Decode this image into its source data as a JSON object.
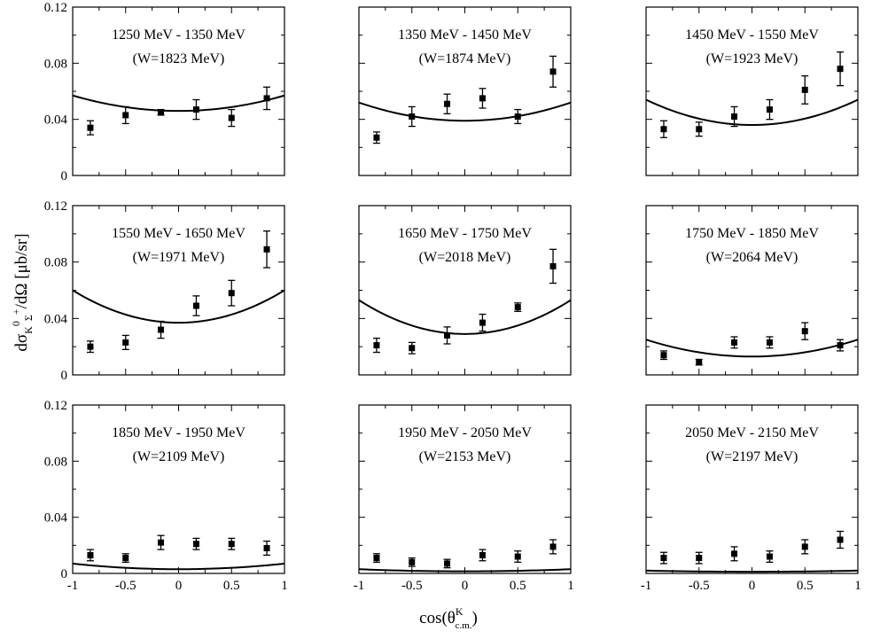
{
  "figure": {
    "ylabel_main": "dσ",
    "ylabel_sub": "K",
    "ylabel_sub2": "Σ",
    "ylabel_sup": "0",
    "ylabel_sup2": "+",
    "ylabel_tail": "/dΩ [μb/sr]",
    "xlabel_main": "cos(θ",
    "xlabel_sup": "K",
    "xlabel_sub": "c.m.",
    "xlabel_tail": ")"
  },
  "chart_data": [
    {
      "type": "scatter",
      "title": "1250 MeV - 1350 MeV",
      "subtitle": "(W=1823 MeV)",
      "xlim": [
        -1,
        1
      ],
      "ylim": [
        0,
        0.12
      ],
      "xticks": [
        "-1",
        "-0.5",
        "0",
        "0.5",
        "1"
      ],
      "yticks": [
        "0",
        "0.04",
        "0.08",
        "0.12"
      ],
      "points": [
        {
          "x": -0.833,
          "y": 0.034,
          "err": 0.005
        },
        {
          "x": -0.5,
          "y": 0.043,
          "err": 0.006
        },
        {
          "x": -0.167,
          "y": 0.045,
          "err": 0.002
        },
        {
          "x": 0.167,
          "y": 0.047,
          "err": 0.007
        },
        {
          "x": 0.5,
          "y": 0.041,
          "err": 0.006
        },
        {
          "x": 0.833,
          "y": 0.055,
          "err": 0.008
        }
      ],
      "curve": {
        "min": 0.046,
        "edge": 0.057
      }
    },
    {
      "type": "scatter",
      "title": "1350 MeV - 1450 MeV",
      "subtitle": "(W=1874 MeV)",
      "xlim": [
        -1,
        1
      ],
      "ylim": [
        0,
        0.12
      ],
      "xticks": [
        "-1",
        "-0.5",
        "0",
        "0.5",
        "1"
      ],
      "yticks": [
        "0",
        "0.04",
        "0.08",
        "0.12"
      ],
      "points": [
        {
          "x": -0.833,
          "y": 0.027,
          "err": 0.004
        },
        {
          "x": -0.5,
          "y": 0.042,
          "err": 0.007
        },
        {
          "x": -0.167,
          "y": 0.051,
          "err": 0.007
        },
        {
          "x": 0.167,
          "y": 0.055,
          "err": 0.007
        },
        {
          "x": 0.5,
          "y": 0.042,
          "err": 0.005
        },
        {
          "x": 0.833,
          "y": 0.074,
          "err": 0.011
        }
      ],
      "curve": {
        "min": 0.039,
        "edge": 0.052
      }
    },
    {
      "type": "scatter",
      "title": "1450 MeV - 1550 MeV",
      "subtitle": "(W=1923 MeV)",
      "xlim": [
        -1,
        1
      ],
      "ylim": [
        0,
        0.12
      ],
      "xticks": [
        "-1",
        "-0.5",
        "0",
        "0.5",
        "1"
      ],
      "yticks": [
        "0",
        "0.04",
        "0.08",
        "0.12"
      ],
      "points": [
        {
          "x": -0.833,
          "y": 0.033,
          "err": 0.006
        },
        {
          "x": -0.5,
          "y": 0.033,
          "err": 0.005
        },
        {
          "x": -0.167,
          "y": 0.042,
          "err": 0.007
        },
        {
          "x": 0.167,
          "y": 0.047,
          "err": 0.007
        },
        {
          "x": 0.5,
          "y": 0.061,
          "err": 0.01
        },
        {
          "x": 0.833,
          "y": 0.076,
          "err": 0.012
        }
      ],
      "curve": {
        "min": 0.036,
        "edge": 0.054
      }
    },
    {
      "type": "scatter",
      "title": "1550 MeV - 1650 MeV",
      "subtitle": "(W=1971 MeV)",
      "xlim": [
        -1,
        1
      ],
      "ylim": [
        0,
        0.12
      ],
      "xticks": [
        "-1",
        "-0.5",
        "0",
        "0.5",
        "1"
      ],
      "yticks": [
        "0",
        "0.04",
        "0.08",
        "0.12"
      ],
      "points": [
        {
          "x": -0.833,
          "y": 0.02,
          "err": 0.004
        },
        {
          "x": -0.5,
          "y": 0.023,
          "err": 0.005
        },
        {
          "x": -0.167,
          "y": 0.032,
          "err": 0.006
        },
        {
          "x": 0.167,
          "y": 0.049,
          "err": 0.007
        },
        {
          "x": 0.5,
          "y": 0.058,
          "err": 0.009
        },
        {
          "x": 0.833,
          "y": 0.089,
          "err": 0.013
        }
      ],
      "curve": {
        "min": 0.037,
        "edge": 0.06
      }
    },
    {
      "type": "scatter",
      "title": "1650 MeV - 1750 MeV",
      "subtitle": "(W=2018 MeV)",
      "xlim": [
        -1,
        1
      ],
      "ylim": [
        0,
        0.12
      ],
      "xticks": [
        "-1",
        "-0.5",
        "0",
        "0.5",
        "1"
      ],
      "yticks": [
        "0",
        "0.04",
        "0.08",
        "0.12"
      ],
      "points": [
        {
          "x": -0.833,
          "y": 0.021,
          "err": 0.005
        },
        {
          "x": -0.5,
          "y": 0.019,
          "err": 0.004
        },
        {
          "x": -0.167,
          "y": 0.028,
          "err": 0.006
        },
        {
          "x": 0.167,
          "y": 0.037,
          "err": 0.006
        },
        {
          "x": 0.5,
          "y": 0.048,
          "err": 0.003
        },
        {
          "x": 0.833,
          "y": 0.077,
          "err": 0.012
        }
      ],
      "curve": {
        "min": 0.029,
        "edge": 0.053
      }
    },
    {
      "type": "scatter",
      "title": "1750 MeV - 1850 MeV",
      "subtitle": "(W=2064 MeV)",
      "xlim": [
        -1,
        1
      ],
      "ylim": [
        0,
        0.12
      ],
      "xticks": [
        "-1",
        "-0.5",
        "0",
        "0.5",
        "1"
      ],
      "yticks": [
        "0",
        "0.04",
        "0.08",
        "0.12"
      ],
      "points": [
        {
          "x": -0.833,
          "y": 0.014,
          "err": 0.003
        },
        {
          "x": -0.5,
          "y": 0.009,
          "err": 0.002
        },
        {
          "x": -0.167,
          "y": 0.023,
          "err": 0.004
        },
        {
          "x": 0.167,
          "y": 0.023,
          "err": 0.004
        },
        {
          "x": 0.5,
          "y": 0.031,
          "err": 0.006
        },
        {
          "x": 0.833,
          "y": 0.021,
          "err": 0.004
        }
      ],
      "curve": {
        "min": 0.013,
        "edge": 0.025
      }
    },
    {
      "type": "scatter",
      "title": "1850 MeV - 1950 MeV",
      "subtitle": "(W=2109 MeV)",
      "xlim": [
        -1,
        1
      ],
      "ylim": [
        0,
        0.12
      ],
      "xticks": [
        "-1",
        "-0.5",
        "0",
        "0.5",
        "1"
      ],
      "yticks": [
        "0",
        "0.04",
        "0.08",
        "0.12"
      ],
      "points": [
        {
          "x": -0.833,
          "y": 0.013,
          "err": 0.004
        },
        {
          "x": -0.5,
          "y": 0.011,
          "err": 0.003
        },
        {
          "x": -0.167,
          "y": 0.022,
          "err": 0.005
        },
        {
          "x": 0.167,
          "y": 0.021,
          "err": 0.004
        },
        {
          "x": 0.5,
          "y": 0.021,
          "err": 0.004
        },
        {
          "x": 0.833,
          "y": 0.018,
          "err": 0.005
        }
      ],
      "curve": {
        "min": 0.003,
        "edge": 0.007
      }
    },
    {
      "type": "scatter",
      "title": "1950 MeV - 2050 MeV",
      "subtitle": "(W=2153 MeV)",
      "xlim": [
        -1,
        1
      ],
      "ylim": [
        0,
        0.12
      ],
      "xticks": [
        "-1",
        "-0.5",
        "0",
        "0.5",
        "1"
      ],
      "yticks": [
        "0",
        "0.04",
        "0.08",
        "0.12"
      ],
      "points": [
        {
          "x": -0.833,
          "y": 0.011,
          "err": 0.003
        },
        {
          "x": -0.5,
          "y": 0.008,
          "err": 0.003
        },
        {
          "x": -0.167,
          "y": 0.007,
          "err": 0.003
        },
        {
          "x": 0.167,
          "y": 0.013,
          "err": 0.004
        },
        {
          "x": 0.5,
          "y": 0.012,
          "err": 0.004
        },
        {
          "x": 0.833,
          "y": 0.019,
          "err": 0.005
        }
      ],
      "curve": {
        "min": 0.0015,
        "edge": 0.003
      }
    },
    {
      "type": "scatter",
      "title": "2050 MeV - 2150 MeV",
      "subtitle": "(W=2197 MeV)",
      "xlim": [
        -1,
        1
      ],
      "ylim": [
        0,
        0.12
      ],
      "xticks": [
        "-1",
        "-0.5",
        "0",
        "0.5",
        "1"
      ],
      "yticks": [
        "0",
        "0.04",
        "0.08",
        "0.12"
      ],
      "points": [
        {
          "x": -0.833,
          "y": 0.011,
          "err": 0.004
        },
        {
          "x": -0.5,
          "y": 0.011,
          "err": 0.004
        },
        {
          "x": -0.167,
          "y": 0.014,
          "err": 0.005
        },
        {
          "x": 0.167,
          "y": 0.012,
          "err": 0.004
        },
        {
          "x": 0.5,
          "y": 0.019,
          "err": 0.005
        },
        {
          "x": 0.833,
          "y": 0.024,
          "err": 0.006
        }
      ],
      "curve": {
        "min": 0.0012,
        "edge": 0.002
      }
    }
  ]
}
